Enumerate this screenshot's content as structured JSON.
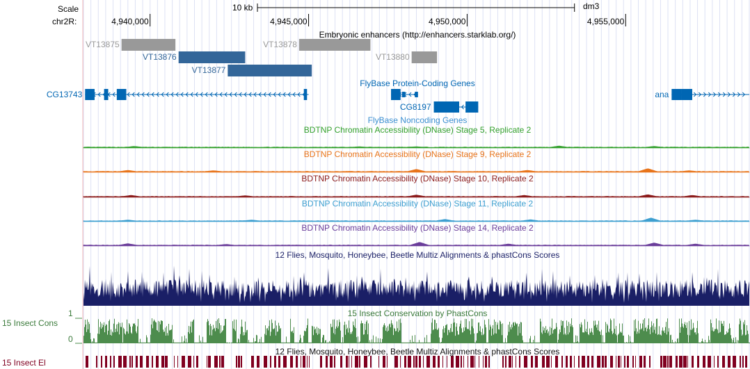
{
  "genome": "dm3",
  "chromosome_label": "chr2R:",
  "scale": {
    "label": "Scale",
    "bar_label": "10 kb",
    "bar_kb": 10
  },
  "region": {
    "start": 4937900,
    "end": 4958900
  },
  "ruler_ticks": [
    {
      "pos": 4940000,
      "label": "4,940,000"
    },
    {
      "pos": 4945000,
      "label": "4,945,000"
    },
    {
      "pos": 4950000,
      "label": "4,950,000"
    },
    {
      "pos": 4955000,
      "label": "4,955,000"
    }
  ],
  "enhancer_track": {
    "title": "Embryonic enhancers (http://enhancers.starklab.org/)",
    "colors": {
      "inactive": "#999999",
      "active": "#336699"
    },
    "items": [
      {
        "name": "VT13875",
        "start": 4939100,
        "end": 4940800,
        "row": 0,
        "active": false,
        "label_side": "left"
      },
      {
        "name": "VT13878",
        "start": 4944700,
        "end": 4946950,
        "row": 0,
        "active": false,
        "label_side": "left"
      },
      {
        "name": "VT13876",
        "start": 4940900,
        "end": 4943000,
        "row": 1,
        "active": true,
        "label_side": "left"
      },
      {
        "name": "VT13880",
        "start": 4948250,
        "end": 4949050,
        "row": 1,
        "active": false,
        "label_side": "left"
      },
      {
        "name": "VT13877",
        "start": 4942450,
        "end": 4945100,
        "row": 2,
        "active": true,
        "label_side": "left"
      }
    ]
  },
  "gene_track": {
    "title": "FlyBase Protein-Coding Genes",
    "color": "#0066b3",
    "genes": [
      {
        "name": "CG13743",
        "start": 4937950,
        "end": 4945000,
        "strand": "-",
        "row": 0,
        "label_side": "left",
        "exons": [
          [
            4937950,
            4938250,
            "thick"
          ],
          [
            4938550,
            4938680,
            "thick"
          ],
          [
            4938950,
            4939250,
            "thick"
          ],
          [
            4944850,
            4944950,
            "thick"
          ]
        ]
      },
      {
        "name": "CG8197",
        "start": 4947600,
        "end": 4948450,
        "strand": "-",
        "row": 0,
        "label_side": "none",
        "exons": [
          [
            4947600,
            4947900,
            "thick"
          ],
          [
            4947950,
            4948050,
            "thin"
          ],
          [
            4948350,
            4948450,
            "thin"
          ]
        ]
      },
      {
        "name": "CG8197",
        "start": 4948950,
        "end": 4950350,
        "strand": "-",
        "row": 1,
        "label_side": "left",
        "exons": [
          [
            4948950,
            4949750,
            "thick"
          ],
          [
            4949950,
            4950350,
            "thick"
          ]
        ]
      },
      {
        "name": "ana",
        "start": 4956450,
        "end": 4958900,
        "strand": "+",
        "row": 0,
        "label_side": "left",
        "exons": [
          [
            4956450,
            4956750,
            "thick"
          ],
          [
            4956750,
            4957100,
            "thick"
          ]
        ]
      }
    ]
  },
  "noncoding_track": {
    "title": "FlyBase Noncoding Genes"
  },
  "dnase_tracks": [
    {
      "title": "BDTNP Chromatin Accessibility (DNase) Stage 5, Replicate 2",
      "color": "#33a02c",
      "peaks": [
        [
          4939500,
          0.3
        ],
        [
          4946600,
          0.2
        ],
        [
          4948400,
          0.2
        ],
        [
          4952900,
          0.4
        ],
        [
          4955900,
          0.3
        ]
      ]
    },
    {
      "title": "BDTNP Chromatin Accessibility (DNase) Stage 9, Replicate 2",
      "color": "#e8741a",
      "peaks": [
        [
          4939300,
          0.4
        ],
        [
          4942000,
          0.3
        ],
        [
          4948400,
          0.7
        ],
        [
          4951900,
          0.4
        ],
        [
          4955700,
          0.9
        ],
        [
          4957000,
          0.3
        ]
      ]
    },
    {
      "title": "BDTNP Chromatin Accessibility (DNase) Stage 10, Replicate 2",
      "color": "#8b1a1a",
      "peaks": [
        [
          4939400,
          0.4
        ],
        [
          4943000,
          0.3
        ],
        [
          4948400,
          0.5
        ],
        [
          4951800,
          0.4
        ],
        [
          4955700,
          0.6
        ],
        [
          4957100,
          0.4
        ]
      ]
    },
    {
      "title": "BDTNP Chromatin Accessibility (DNase) Stage 11, Replicate 2",
      "color": "#3d9fd0",
      "peaks": [
        [
          4939300,
          0.3
        ],
        [
          4943200,
          0.3
        ],
        [
          4949300,
          0.5
        ],
        [
          4952000,
          0.4
        ],
        [
          4955800,
          0.9
        ],
        [
          4957200,
          0.3
        ]
      ]
    },
    {
      "title": "BDTNP Chromatin Accessibility (DNase) Stage 14, Replicate 2",
      "color": "#6a3d9a",
      "peaks": [
        [
          4939300,
          0.5
        ],
        [
          4942400,
          0.3
        ],
        [
          4948500,
          0.9
        ],
        [
          4951300,
          0.4
        ],
        [
          4955900,
          0.7
        ],
        [
          4957200,
          0.4
        ]
      ]
    }
  ],
  "multiz_track": {
    "title": "12 Flies, Mosquito, Honeybee, Beetle Multiz Alignments & phastCons Scores",
    "color": "#1a1f66"
  },
  "phastcons_track": {
    "title": "15 Insect Conservation by PhastCons",
    "side_label": "15 Insect Cons",
    "axis_max": "1",
    "axis_min": "0",
    "color": "#4d8c4d",
    "label_color": "#3a7a3a"
  },
  "elements_track": {
    "title": "12 Flies, Mosquito, Honeybee, Beetle Multiz Alignments & phastCons Scores",
    "side_label": "15 Insect El",
    "color": "#800020"
  }
}
